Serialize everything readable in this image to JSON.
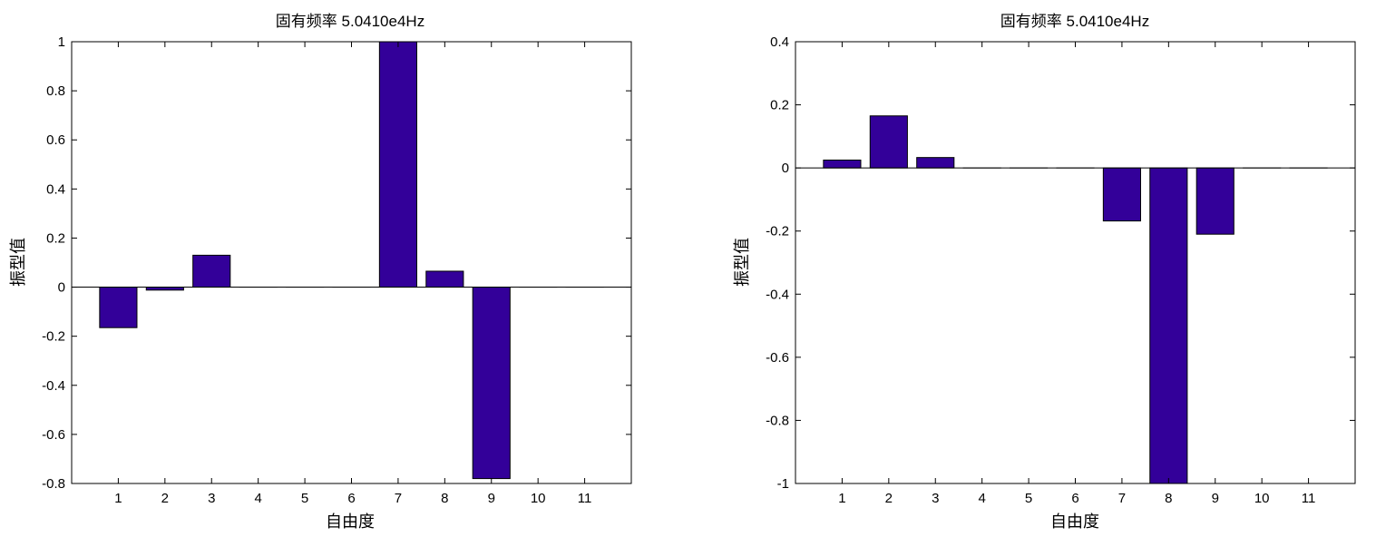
{
  "chart_data": [
    {
      "type": "bar",
      "title": "固有频率 5.0410e4Hz",
      "xlabel": "自由度",
      "ylabel": "振型值",
      "categories": [
        "1",
        "2",
        "3",
        "4",
        "5",
        "6",
        "7",
        "8",
        "9",
        "10",
        "11"
      ],
      "values": [
        -0.165,
        -0.012,
        0.13,
        0,
        0,
        0,
        1.0,
        0.065,
        -0.78,
        0,
        0
      ],
      "ylim": [
        -0.8,
        1.0
      ],
      "yticks": [
        -0.8,
        -0.6,
        -0.4,
        -0.2,
        0,
        0.2,
        0.4,
        0.6,
        0.8,
        1
      ],
      "ytick_labels": [
        "-0.8",
        "-0.6",
        "-0.4",
        "-0.2",
        "0",
        "0.2",
        "0.4",
        "0.6",
        "0.8",
        "1"
      ],
      "grid": false,
      "bar_color": "#330099"
    },
    {
      "type": "bar",
      "title": "固有频率 5.0410e4Hz",
      "xlabel": "自由度",
      "ylabel": "振型值",
      "categories": [
        "1",
        "2",
        "3",
        "4",
        "5",
        "6",
        "7",
        "8",
        "9",
        "10",
        "11"
      ],
      "values": [
        0.025,
        0.165,
        0.033,
        0,
        0,
        0,
        -0.168,
        -1.0,
        -0.21,
        0,
        0
      ],
      "ylim": [
        -1.0,
        0.4
      ],
      "yticks": [
        -1,
        -0.8,
        -0.6,
        -0.4,
        -0.2,
        0,
        0.2,
        0.4
      ],
      "ytick_labels": [
        "-1",
        "-0.8",
        "-0.6",
        "-0.4",
        "-0.2",
        "0",
        "0.2",
        "0.4"
      ],
      "grid": false,
      "bar_color": "#330099"
    }
  ]
}
